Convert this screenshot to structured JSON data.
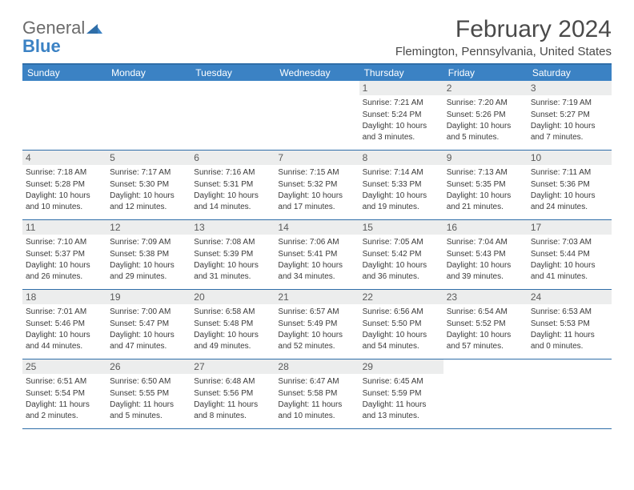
{
  "brand": {
    "word1": "General",
    "word2": "Blue"
  },
  "title": "February 2024",
  "subtitle": "Flemington, Pennsylvania, United States",
  "colors": {
    "header_bg": "#3b82c4",
    "border": "#2f6ea8",
    "daynum_bg": "#eceded",
    "text": "#3a3a3a",
    "title": "#4a4a4a"
  },
  "day_names": [
    "Sunday",
    "Monday",
    "Tuesday",
    "Wednesday",
    "Thursday",
    "Friday",
    "Saturday"
  ],
  "weeks": [
    [
      null,
      null,
      null,
      null,
      {
        "n": "1",
        "sr": "7:21 AM",
        "ss": "5:24 PM",
        "dl": "10 hours and 3 minutes."
      },
      {
        "n": "2",
        "sr": "7:20 AM",
        "ss": "5:26 PM",
        "dl": "10 hours and 5 minutes."
      },
      {
        "n": "3",
        "sr": "7:19 AM",
        "ss": "5:27 PM",
        "dl": "10 hours and 7 minutes."
      }
    ],
    [
      {
        "n": "4",
        "sr": "7:18 AM",
        "ss": "5:28 PM",
        "dl": "10 hours and 10 minutes."
      },
      {
        "n": "5",
        "sr": "7:17 AM",
        "ss": "5:30 PM",
        "dl": "10 hours and 12 minutes."
      },
      {
        "n": "6",
        "sr": "7:16 AM",
        "ss": "5:31 PM",
        "dl": "10 hours and 14 minutes."
      },
      {
        "n": "7",
        "sr": "7:15 AM",
        "ss": "5:32 PM",
        "dl": "10 hours and 17 minutes."
      },
      {
        "n": "8",
        "sr": "7:14 AM",
        "ss": "5:33 PM",
        "dl": "10 hours and 19 minutes."
      },
      {
        "n": "9",
        "sr": "7:13 AM",
        "ss": "5:35 PM",
        "dl": "10 hours and 21 minutes."
      },
      {
        "n": "10",
        "sr": "7:11 AM",
        "ss": "5:36 PM",
        "dl": "10 hours and 24 minutes."
      }
    ],
    [
      {
        "n": "11",
        "sr": "7:10 AM",
        "ss": "5:37 PM",
        "dl": "10 hours and 26 minutes."
      },
      {
        "n": "12",
        "sr": "7:09 AM",
        "ss": "5:38 PM",
        "dl": "10 hours and 29 minutes."
      },
      {
        "n": "13",
        "sr": "7:08 AM",
        "ss": "5:39 PM",
        "dl": "10 hours and 31 minutes."
      },
      {
        "n": "14",
        "sr": "7:06 AM",
        "ss": "5:41 PM",
        "dl": "10 hours and 34 minutes."
      },
      {
        "n": "15",
        "sr": "7:05 AM",
        "ss": "5:42 PM",
        "dl": "10 hours and 36 minutes."
      },
      {
        "n": "16",
        "sr": "7:04 AM",
        "ss": "5:43 PM",
        "dl": "10 hours and 39 minutes."
      },
      {
        "n": "17",
        "sr": "7:03 AM",
        "ss": "5:44 PM",
        "dl": "10 hours and 41 minutes."
      }
    ],
    [
      {
        "n": "18",
        "sr": "7:01 AM",
        "ss": "5:46 PM",
        "dl": "10 hours and 44 minutes."
      },
      {
        "n": "19",
        "sr": "7:00 AM",
        "ss": "5:47 PM",
        "dl": "10 hours and 47 minutes."
      },
      {
        "n": "20",
        "sr": "6:58 AM",
        "ss": "5:48 PM",
        "dl": "10 hours and 49 minutes."
      },
      {
        "n": "21",
        "sr": "6:57 AM",
        "ss": "5:49 PM",
        "dl": "10 hours and 52 minutes."
      },
      {
        "n": "22",
        "sr": "6:56 AM",
        "ss": "5:50 PM",
        "dl": "10 hours and 54 minutes."
      },
      {
        "n": "23",
        "sr": "6:54 AM",
        "ss": "5:52 PM",
        "dl": "10 hours and 57 minutes."
      },
      {
        "n": "24",
        "sr": "6:53 AM",
        "ss": "5:53 PM",
        "dl": "11 hours and 0 minutes."
      }
    ],
    [
      {
        "n": "25",
        "sr": "6:51 AM",
        "ss": "5:54 PM",
        "dl": "11 hours and 2 minutes."
      },
      {
        "n": "26",
        "sr": "6:50 AM",
        "ss": "5:55 PM",
        "dl": "11 hours and 5 minutes."
      },
      {
        "n": "27",
        "sr": "6:48 AM",
        "ss": "5:56 PM",
        "dl": "11 hours and 8 minutes."
      },
      {
        "n": "28",
        "sr": "6:47 AM",
        "ss": "5:58 PM",
        "dl": "11 hours and 10 minutes."
      },
      {
        "n": "29",
        "sr": "6:45 AM",
        "ss": "5:59 PM",
        "dl": "11 hours and 13 minutes."
      },
      null,
      null
    ]
  ],
  "labels": {
    "sunrise": "Sunrise:",
    "sunset": "Sunset:",
    "daylight": "Daylight:"
  }
}
